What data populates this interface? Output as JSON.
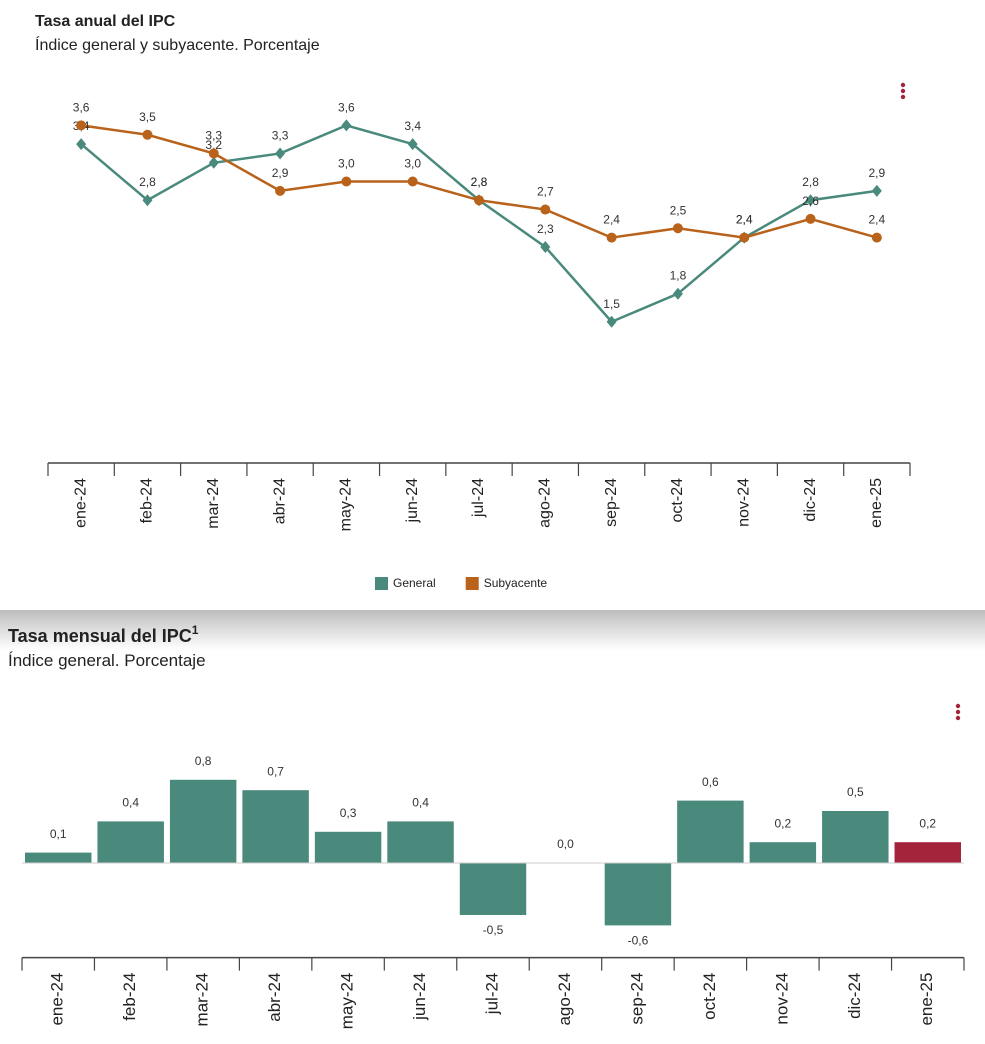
{
  "chart_data": [
    {
      "type": "line",
      "title": "Tasa anual del IPC",
      "subtitle": "Índice general y subyacente. Porcentaje",
      "categories": [
        "ene-24",
        "feb-24",
        "mar-24",
        "abr-24",
        "may-24",
        "jun-24",
        "jul-24",
        "ago-24",
        "sep-24",
        "oct-24",
        "nov-24",
        "dic-24",
        "ene-25"
      ],
      "series": [
        {
          "name": "General",
          "color": "#4a8a7c",
          "values": [
            3.4,
            2.8,
            3.2,
            3.3,
            3.6,
            3.4,
            2.8,
            2.3,
            1.5,
            1.8,
            2.4,
            2.8,
            2.9
          ],
          "value_labels": [
            "3,4",
            "2,8",
            "3,2",
            "3,3",
            "3,6",
            "3,4",
            "2,8",
            "2,3",
            "1,5",
            "1,8",
            "2,4",
            "2,8",
            "2,9"
          ]
        },
        {
          "name": "Subyacente",
          "color": "#b8621b",
          "values": [
            3.6,
            3.5,
            3.3,
            2.9,
            3.0,
            3.0,
            2.8,
            2.7,
            2.4,
            2.5,
            2.4,
            2.6,
            2.4
          ],
          "value_labels": [
            "3,6",
            "3,5",
            "3,3",
            "2,9",
            "3,0",
            "3,0",
            "2,8",
            "2,7",
            "2,4",
            "2,5",
            "2,4",
            "2,6",
            "2,4"
          ]
        }
      ],
      "ylim": [
        0,
        4
      ],
      "legend": "bottom"
    },
    {
      "type": "bar",
      "title": "Tasa mensual del IPC",
      "title_superscript": "1",
      "subtitle": "Índice general. Porcentaje",
      "categories": [
        "ene-24",
        "feb-24",
        "mar-24",
        "abr-24",
        "may-24",
        "jun-24",
        "jul-24",
        "ago-24",
        "sep-24",
        "oct-24",
        "nov-24",
        "dic-24",
        "ene-25"
      ],
      "values": [
        0.1,
        0.4,
        0.8,
        0.7,
        0.3,
        0.4,
        -0.5,
        0.0,
        -0.6,
        0.6,
        0.2,
        0.5,
        0.2
      ],
      "value_labels": [
        "0,1",
        "0,4",
        "0,8",
        "0,7",
        "0,3",
        "0,4",
        "-0,5",
        "0,0",
        "-0,6",
        "0,6",
        "0,2",
        "0,5",
        "0,2"
      ],
      "colors": [
        "#4a8a7c",
        "#4a8a7c",
        "#4a8a7c",
        "#4a8a7c",
        "#4a8a7c",
        "#4a8a7c",
        "#4a8a7c",
        "#4a8a7c",
        "#4a8a7c",
        "#4a8a7c",
        "#4a8a7c",
        "#4a8a7c",
        "#a3243b"
      ],
      "ylim": [
        -0.9,
        0.9
      ]
    }
  ]
}
